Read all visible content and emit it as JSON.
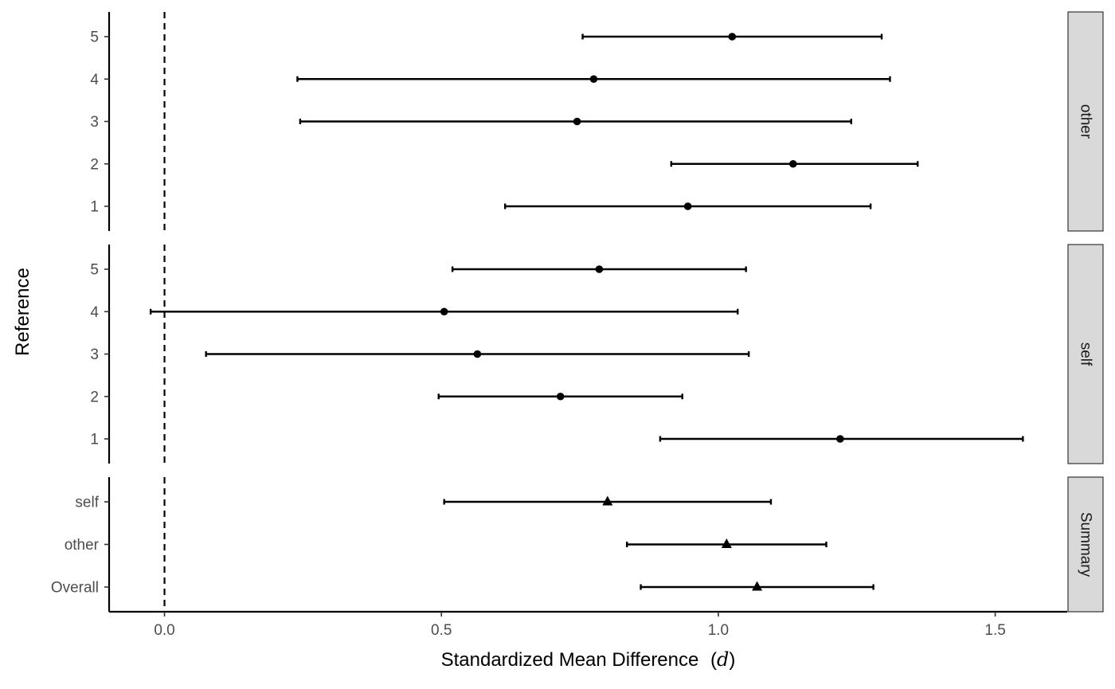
{
  "chart_data": {
    "type": "forest",
    "xlabel": "Standardized Mean Difference",
    "xlabel_symbol": "d",
    "ylabel": "Reference",
    "xlim": [
      -0.1,
      1.63
    ],
    "x_ticks": [
      0.0,
      0.5,
      1.0,
      1.5
    ],
    "x_tick_labels": [
      "0.0",
      "0.5",
      "1.0",
      "1.5"
    ],
    "reference_line": 0,
    "grid": false,
    "panels": [
      {
        "strip": "other",
        "rows": [
          {
            "label": "5",
            "estimate": 1.025,
            "lower": 0.755,
            "upper": 1.295,
            "shape": "circle"
          },
          {
            "label": "4",
            "estimate": 0.775,
            "lower": 0.24,
            "upper": 1.31,
            "shape": "circle"
          },
          {
            "label": "3",
            "estimate": 0.745,
            "lower": 0.245,
            "upper": 1.24,
            "shape": "circle"
          },
          {
            "label": "2",
            "estimate": 1.135,
            "lower": 0.915,
            "upper": 1.36,
            "shape": "circle"
          },
          {
            "label": "1",
            "estimate": 0.945,
            "lower": 0.615,
            "upper": 1.275,
            "shape": "circle"
          }
        ]
      },
      {
        "strip": "self",
        "rows": [
          {
            "label": "5",
            "estimate": 0.785,
            "lower": 0.52,
            "upper": 1.05,
            "shape": "circle"
          },
          {
            "label": "4",
            "estimate": 0.505,
            "lower": -0.025,
            "upper": 1.035,
            "shape": "circle"
          },
          {
            "label": "3",
            "estimate": 0.565,
            "lower": 0.075,
            "upper": 1.055,
            "shape": "circle"
          },
          {
            "label": "2",
            "estimate": 0.715,
            "lower": 0.495,
            "upper": 0.935,
            "shape": "circle"
          },
          {
            "label": "1",
            "estimate": 1.22,
            "lower": 0.895,
            "upper": 1.55,
            "shape": "circle"
          }
        ]
      },
      {
        "strip": "Summary",
        "rows": [
          {
            "label": "self",
            "estimate": 0.8,
            "lower": 0.505,
            "upper": 1.095,
            "shape": "triangle"
          },
          {
            "label": "other",
            "estimate": 1.015,
            "lower": 0.835,
            "upper": 1.195,
            "shape": "triangle"
          },
          {
            "label": "Overall",
            "estimate": 1.07,
            "lower": 0.86,
            "upper": 1.28,
            "shape": "triangle"
          }
        ]
      }
    ]
  }
}
